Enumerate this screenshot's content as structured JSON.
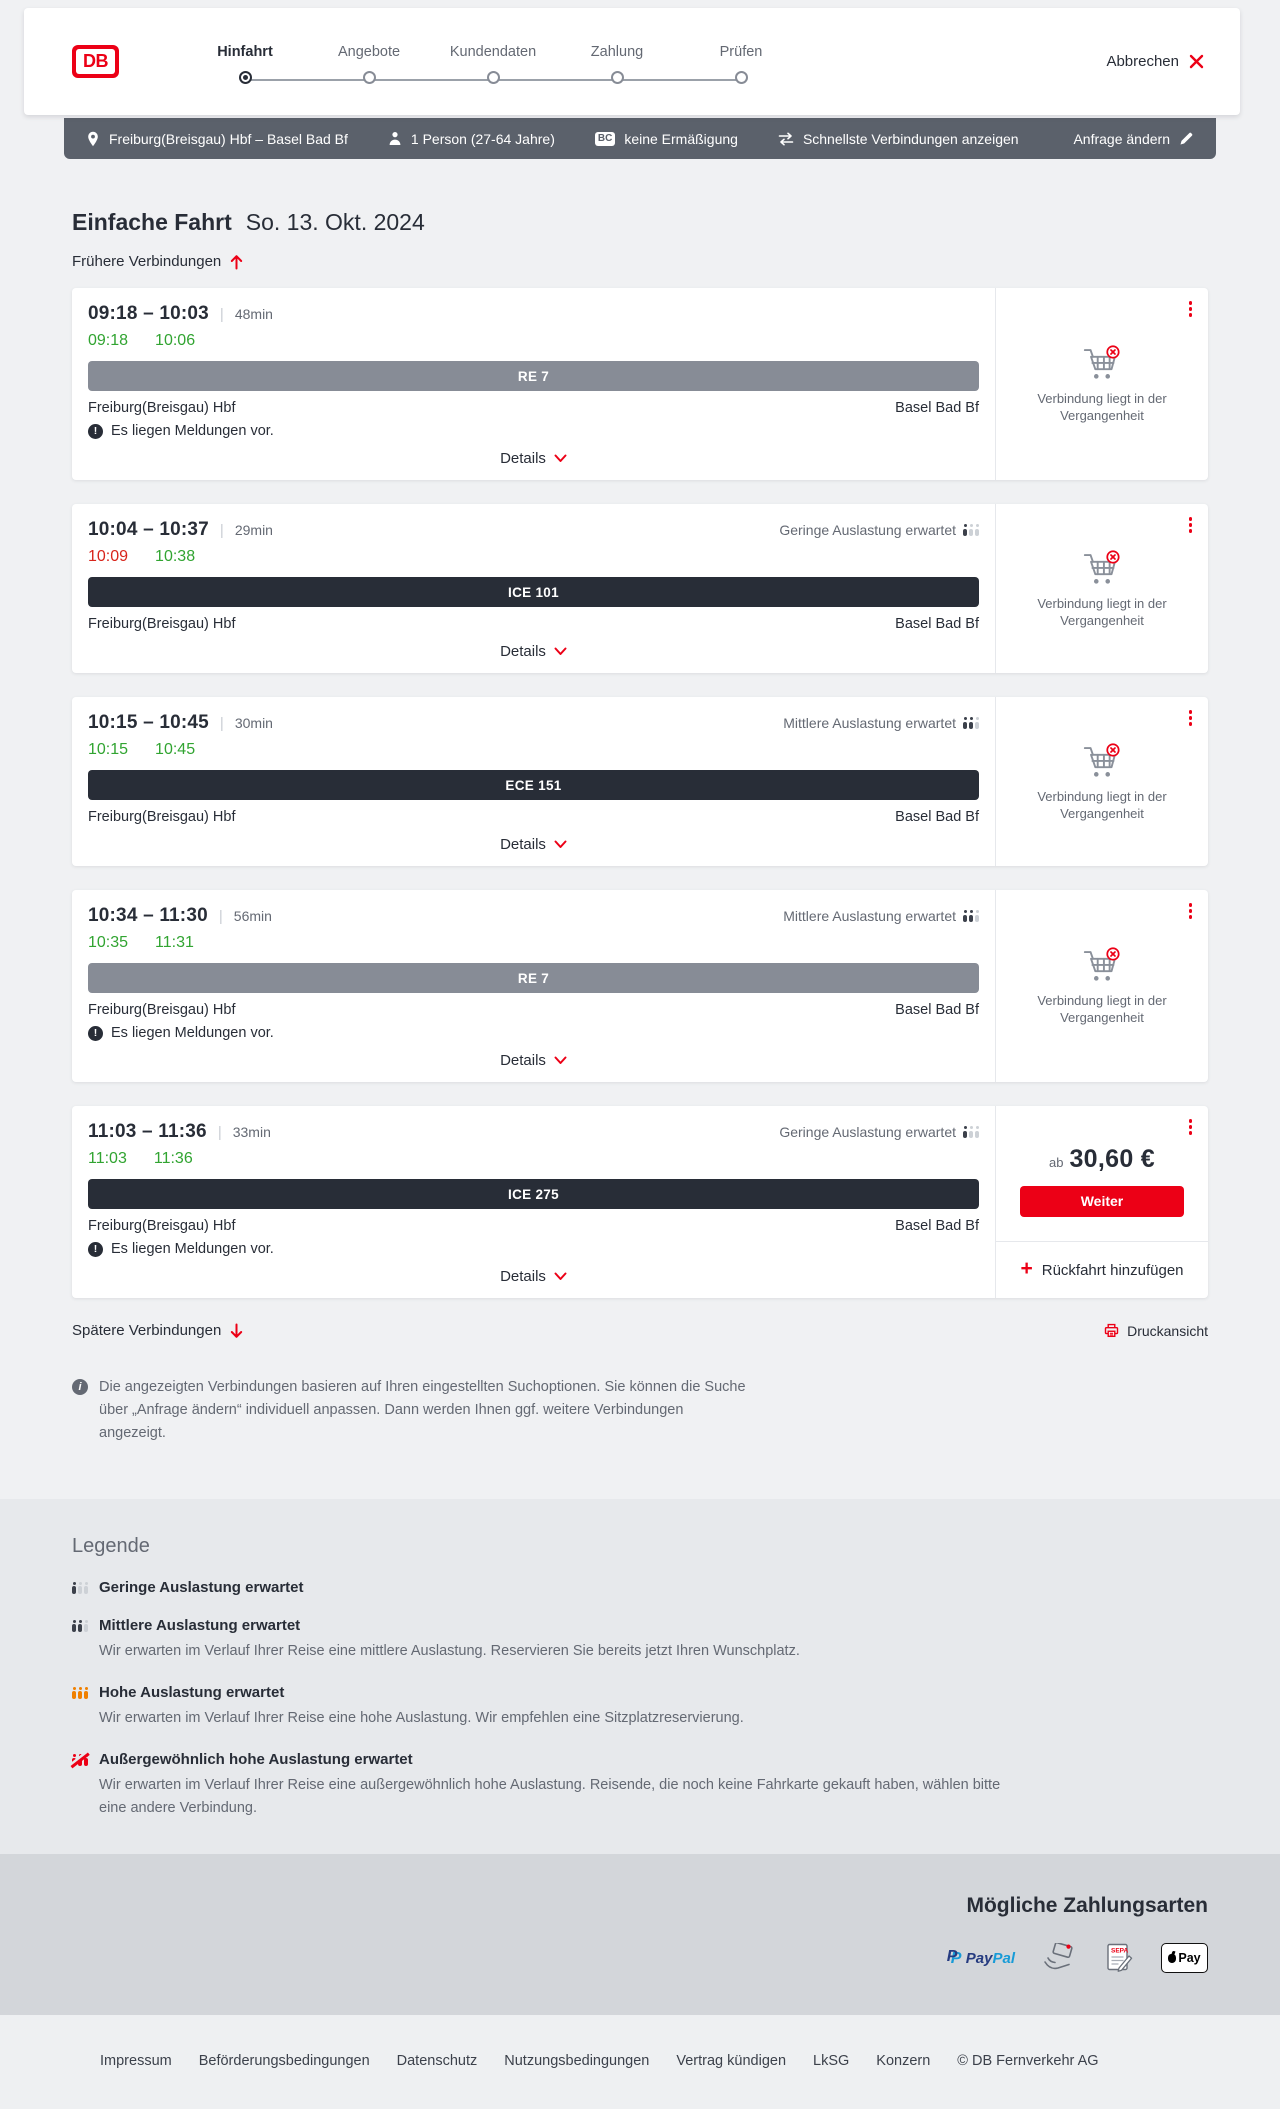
{
  "brand": {
    "logo_text": "DB",
    "accent_red": "#ec0016",
    "dark": "#282d37",
    "bar_gray": "#5b616b"
  },
  "header": {
    "cancel_label": "Abbrechen",
    "steps": [
      {
        "label": "Hinfahrt",
        "active": true
      },
      {
        "label": "Angebote",
        "active": false
      },
      {
        "label": "Kundendaten",
        "active": false
      },
      {
        "label": "Zahlung",
        "active": false
      },
      {
        "label": "Prüfen",
        "active": false
      }
    ]
  },
  "search_summary": {
    "route": "Freiburg(Breisgau) Hbf – Basel Bad Bf",
    "travellers": "1 Person (27-64 Jahre)",
    "bahncard_badge": "BC",
    "discount": "keine Ermäßigung",
    "fastest_connections": "Schnellste Verbindungen anzeigen",
    "change_request": "Anfrage ändern"
  },
  "results": {
    "trip_type": "Einfache Fahrt",
    "trip_date": "So. 13. Okt. 2024",
    "earlier_label": "Frühere Verbindungen",
    "later_label": "Spätere Verbindungen",
    "print_label": "Druckansicht",
    "details_label": "Details",
    "notice_label": "Es liegen Meldungen vor.",
    "past_connection_label": "Verbindung liegt in der Vergangenheit",
    "price_prefix": "ab",
    "continue_label": "Weiter",
    "add_return_label": "Rückfahrt hinzufügen",
    "info_note": "Die angezeigten Verbindungen basieren auf Ihren eingestellten Suchoptionen. Sie können die Suche über „Anfrage ändern“ individuell anpassen. Dann werden Ihnen ggf. weitere Verbindungen angezeigt.",
    "connections": [
      {
        "departure": "09:18",
        "arrival": "10:03",
        "duration": "48min",
        "actual_departure": {
          "time": "09:18",
          "status": "ontime"
        },
        "actual_arrival": {
          "time": "10:06",
          "status": "ontime"
        },
        "train": "RE 7",
        "train_style": "regional",
        "from": "Freiburg(Breisgau) Hbf",
        "to": "Basel Bad Bf",
        "notice": true,
        "occupancy": null,
        "past": true,
        "price": null
      },
      {
        "departure": "10:04",
        "arrival": "10:37",
        "duration": "29min",
        "actual_departure": {
          "time": "10:09",
          "status": "delayed"
        },
        "actual_arrival": {
          "time": "10:38",
          "status": "ontime"
        },
        "train": "ICE 101",
        "train_style": "longdistance",
        "from": "Freiburg(Breisgau) Hbf",
        "to": "Basel Bad Bf",
        "notice": false,
        "occupancy": {
          "label": "Geringe Auslastung erwartet",
          "level": "low"
        },
        "past": true,
        "price": null
      },
      {
        "departure": "10:15",
        "arrival": "10:45",
        "duration": "30min",
        "actual_departure": {
          "time": "10:15",
          "status": "ontime"
        },
        "actual_arrival": {
          "time": "10:45",
          "status": "ontime"
        },
        "train": "ECE 151",
        "train_style": "longdistance",
        "from": "Freiburg(Breisgau) Hbf",
        "to": "Basel Bad Bf",
        "notice": false,
        "occupancy": {
          "label": "Mittlere Auslastung erwartet",
          "level": "medium"
        },
        "past": true,
        "price": null
      },
      {
        "departure": "10:34",
        "arrival": "11:30",
        "duration": "56min",
        "actual_departure": {
          "time": "10:35",
          "status": "ontime"
        },
        "actual_arrival": {
          "time": "11:31",
          "status": "ontime"
        },
        "train": "RE 7",
        "train_style": "regional",
        "from": "Freiburg(Breisgau) Hbf",
        "to": "Basel Bad Bf",
        "notice": true,
        "occupancy": {
          "label": "Mittlere Auslastung erwartet",
          "level": "medium"
        },
        "past": true,
        "price": null
      },
      {
        "departure": "11:03",
        "arrival": "11:36",
        "duration": "33min",
        "actual_departure": {
          "time": "11:03",
          "status": "ontime"
        },
        "actual_arrival": {
          "time": "11:36",
          "status": "ontime"
        },
        "train": "ICE 275",
        "train_style": "longdistance",
        "from": "Freiburg(Breisgau) Hbf",
        "to": "Basel Bad Bf",
        "notice": true,
        "occupancy": {
          "label": "Geringe Auslastung erwartet",
          "level": "low"
        },
        "past": false,
        "price": {
          "prefix": "ab",
          "amount": "30,60 €"
        }
      }
    ]
  },
  "legend": {
    "title": "Legende",
    "items": [
      {
        "level": "low",
        "label": "Geringe Auslastung erwartet",
        "description": ""
      },
      {
        "level": "medium",
        "label": "Mittlere Auslastung erwartet",
        "description": "Wir erwarten im Verlauf Ihrer Reise eine mittlere Auslastung. Reservieren Sie bereits jetzt Ihren Wunschplatz."
      },
      {
        "level": "high",
        "label": "Hohe Auslastung erwartet",
        "description": "Wir erwarten im Verlauf Ihrer Reise eine hohe Auslastung. Wir empfehlen eine Sitzplatzreservierung."
      },
      {
        "level": "exceptional",
        "label": "Außergewöhnlich hohe Auslastung erwartet",
        "description": "Wir erwarten im Verlauf Ihrer Reise eine außergewöhnlich hohe Auslastung. Reisende, die noch keine Fahrkarte gekauft haben, wählen bitte eine andere Verbindung."
      }
    ]
  },
  "payment": {
    "title": "Mögliche Zahlungsarten",
    "methods": [
      "PayPal",
      "Kreditkarte",
      "SEPA-Lastschrift",
      "Apple Pay"
    ],
    "paypal_text_1": "Pay",
    "paypal_text_2": "Pal",
    "applepay_text": "Pay"
  },
  "footer": {
    "links": [
      "Impressum",
      "Beförderungsbedingungen",
      "Datenschutz",
      "Nutzungsbedingungen",
      "Vertrag kündigen",
      "LkSG",
      "Konzern"
    ],
    "copyright": "© DB Fernverkehr AG"
  }
}
